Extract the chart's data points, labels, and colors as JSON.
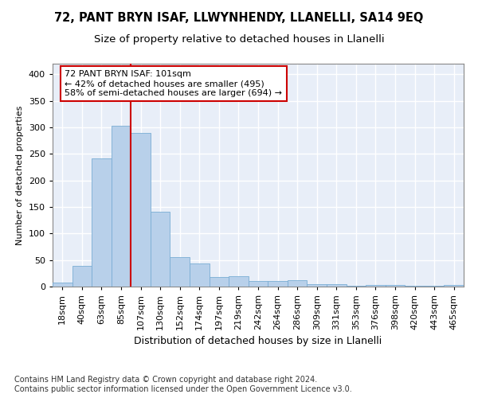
{
  "title": "72, PANT BRYN ISAF, LLWYNHENDY, LLANELLI, SA14 9EQ",
  "subtitle": "Size of property relative to detached houses in Llanelli",
  "xlabel": "Distribution of detached houses by size in Llanelli",
  "ylabel": "Number of detached properties",
  "bar_values": [
    8,
    39,
    242,
    303,
    290,
    141,
    55,
    44,
    18,
    19,
    10,
    11,
    12,
    4,
    4,
    1,
    3,
    3,
    1,
    2,
    3
  ],
  "all_labels": [
    "18sqm",
    "40sqm",
    "63sqm",
    "85sqm",
    "107sqm",
    "130sqm",
    "152sqm",
    "174sqm",
    "197sqm",
    "219sqm",
    "242sqm",
    "264sqm",
    "286sqm",
    "309sqm",
    "331sqm",
    "353sqm",
    "376sqm",
    "398sqm",
    "420sqm",
    "443sqm",
    "465sqm"
  ],
  "bar_color": "#b8d0ea",
  "bar_edge_color": "#7aadd4",
  "vline_index": 4,
  "vline_color": "#cc0000",
  "annotation_text": "72 PANT BRYN ISAF: 101sqm\n← 42% of detached houses are smaller (495)\n58% of semi-detached houses are larger (694) →",
  "annotation_box_facecolor": "#ffffff",
  "annotation_box_edgecolor": "#cc0000",
  "ylim": [
    0,
    420
  ],
  "yticks": [
    0,
    50,
    100,
    150,
    200,
    250,
    300,
    350,
    400
  ],
  "plot_bg_color": "#e8eef8",
  "grid_color": "#ffffff",
  "footer_text": "Contains HM Land Registry data © Crown copyright and database right 2024.\nContains public sector information licensed under the Open Government Licence v3.0.",
  "title_fontsize": 10.5,
  "subtitle_fontsize": 9.5,
  "xlabel_fontsize": 9,
  "ylabel_fontsize": 8,
  "tick_fontsize": 8,
  "annotation_fontsize": 8,
  "footer_fontsize": 7
}
